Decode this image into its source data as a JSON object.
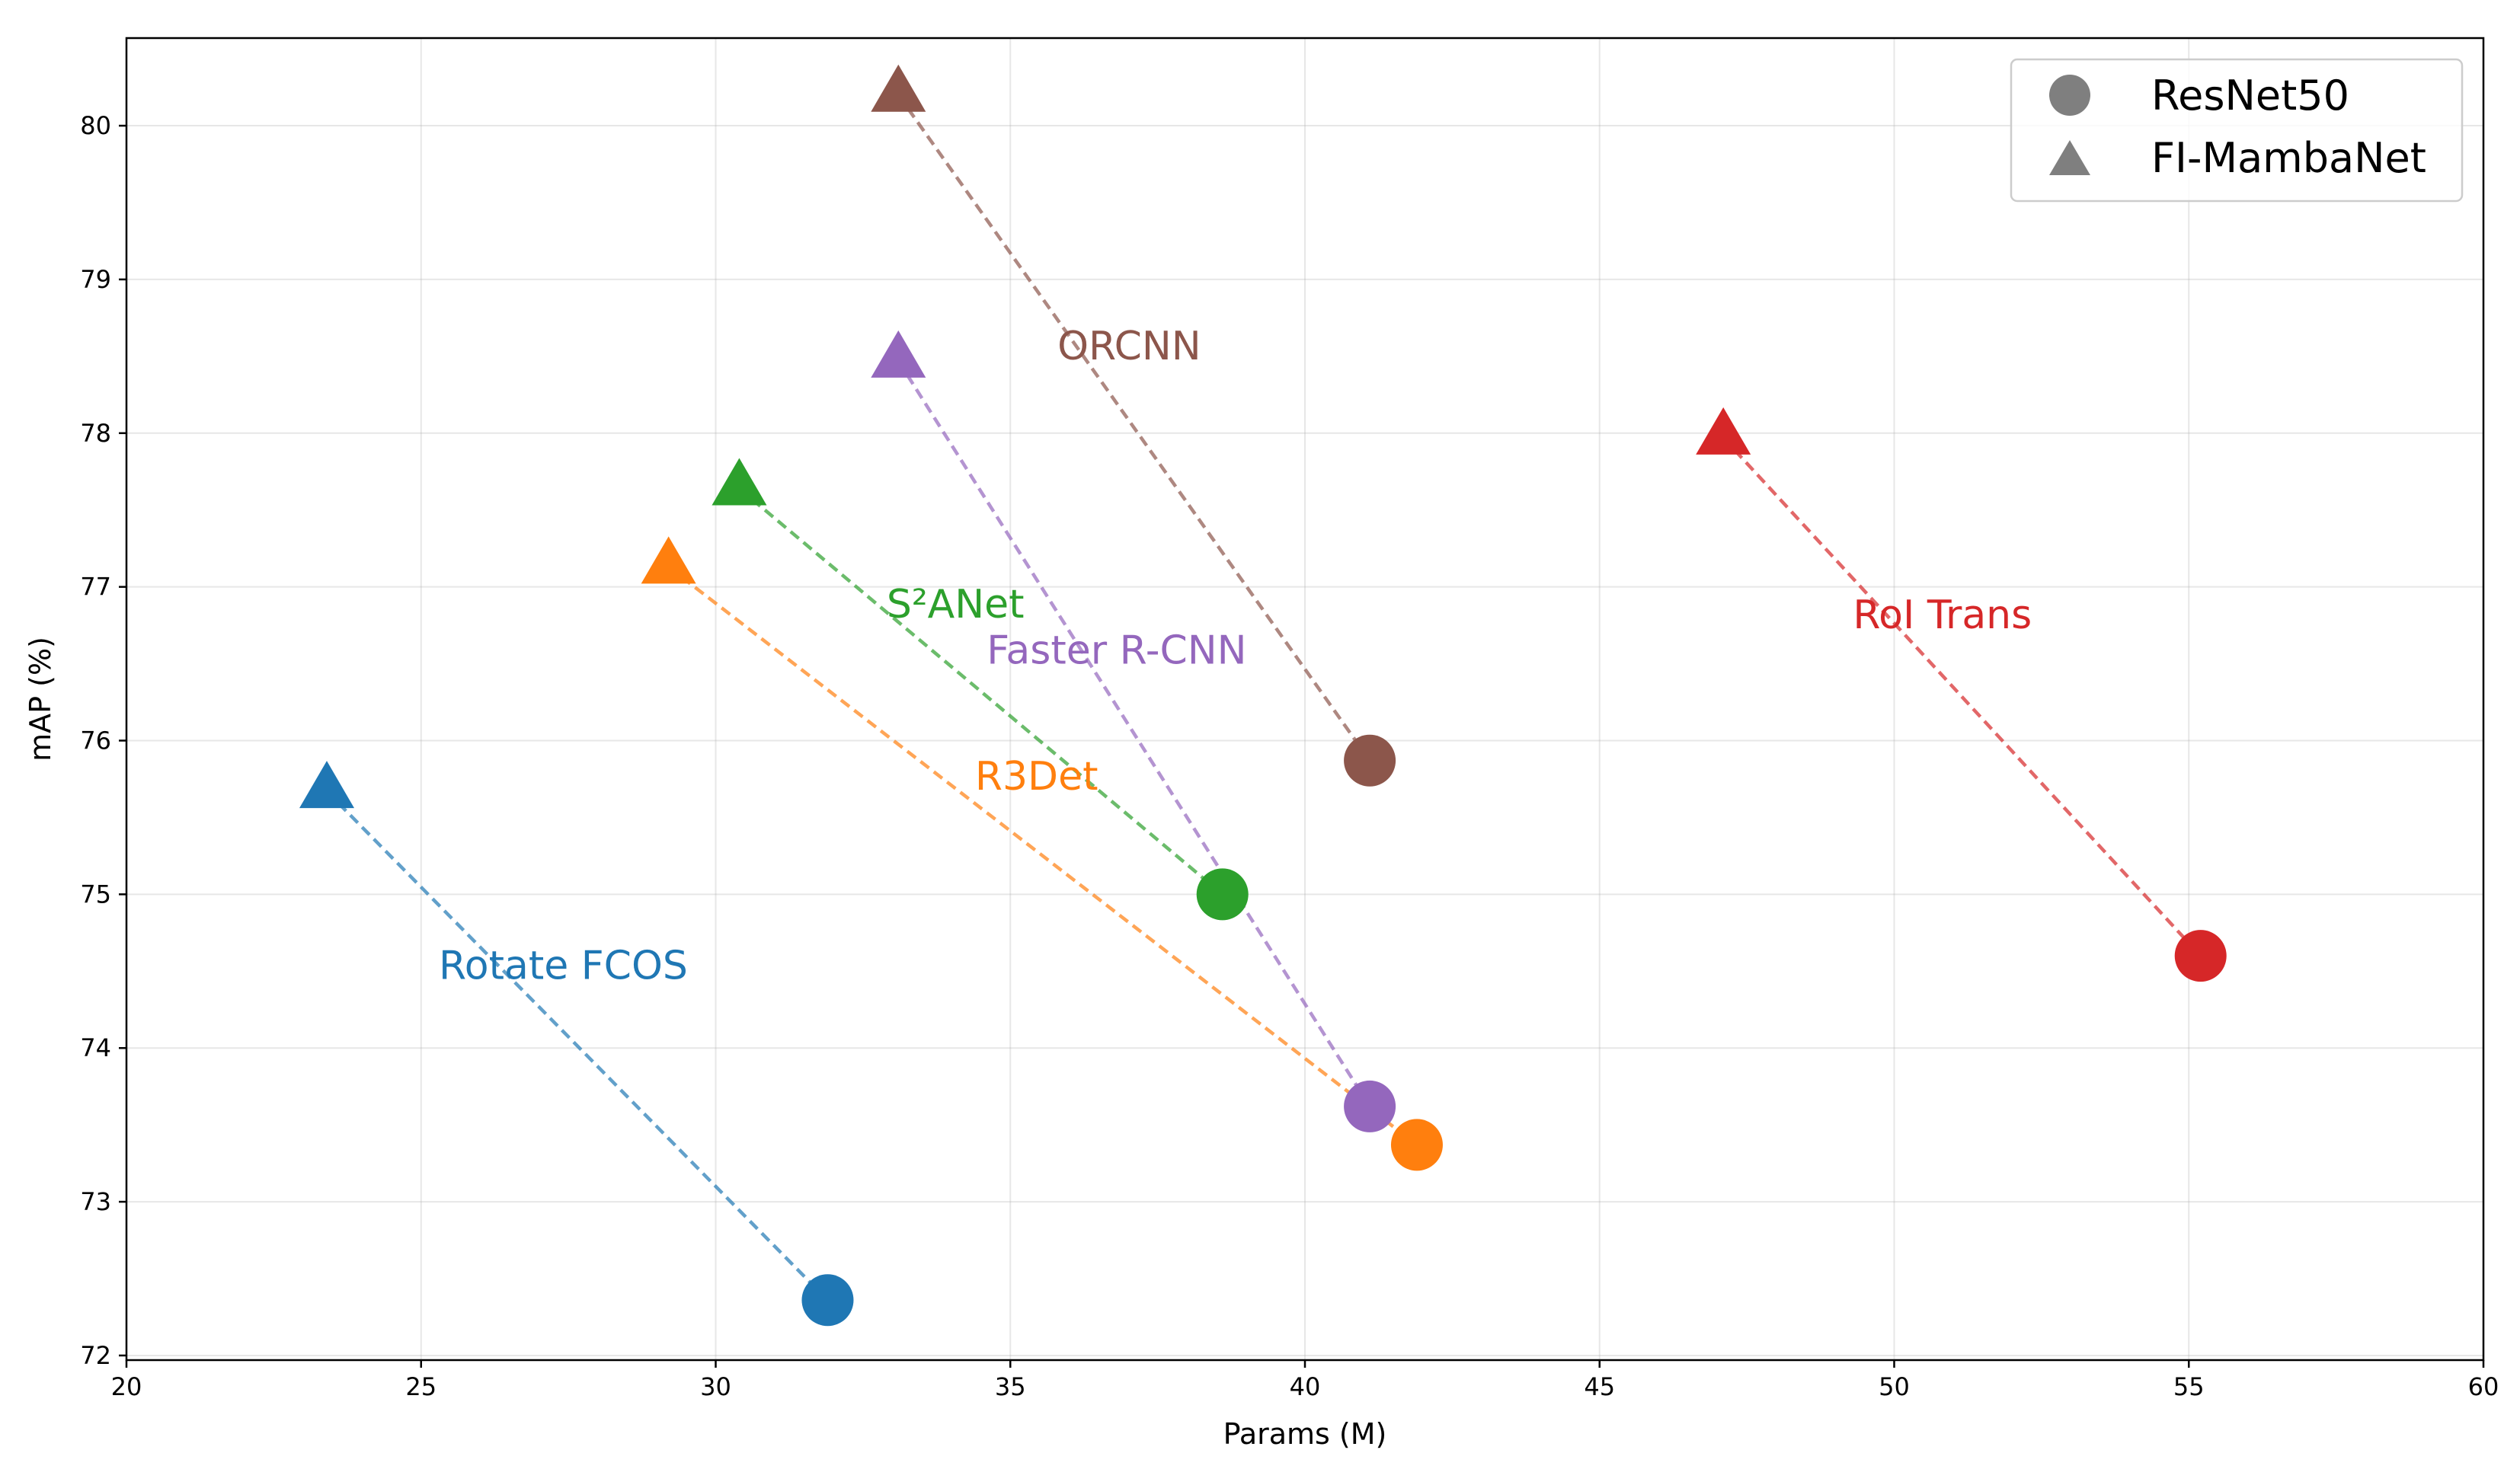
{
  "chart_data": {
    "type": "scatter",
    "title": "",
    "xlabel": "Params (M)",
    "ylabel": "mAP (%)",
    "xlim": [
      20,
      60
    ],
    "ylim": [
      71.97,
      80.57
    ],
    "xticks": [
      20,
      25,
      30,
      35,
      40,
      45,
      50,
      55,
      60
    ],
    "yticks": [
      72,
      73,
      74,
      75,
      76,
      77,
      78,
      79,
      80
    ],
    "grid": true,
    "legend": {
      "position": "top-right",
      "entries": [
        {
          "label": "ResNet50",
          "marker": "circle",
          "color": "#7f7f7f"
        },
        {
          "label": "FI-MambaNet",
          "marker": "triangle",
          "color": "#7f7f7f"
        }
      ]
    },
    "series": [
      {
        "name": "Rotate FCOS",
        "color": "#1f77b4",
        "resnet50": {
          "x": 31.9,
          "y": 72.36
        },
        "fi_mambanet": {
          "x": 23.4,
          "y": 75.67
        },
        "label_pos": {
          "x": 25.3,
          "y": 74.45
        }
      },
      {
        "name": "R3Det",
        "color": "#ff7f0e",
        "resnet50": {
          "x": 41.9,
          "y": 73.37
        },
        "fi_mambanet": {
          "x": 29.2,
          "y": 77.13
        },
        "label_pos": {
          "x": 34.4,
          "y": 75.68
        }
      },
      {
        "name": "S²ANet",
        "color": "#2ca02c",
        "resnet50": {
          "x": 38.6,
          "y": 75.0
        },
        "fi_mambanet": {
          "x": 30.4,
          "y": 77.64
        },
        "label_pos": {
          "x": 32.9,
          "y": 76.8
        }
      },
      {
        "name": "Faster R-CNN",
        "color": "#9467bd",
        "resnet50": {
          "x": 41.1,
          "y": 73.62
        },
        "fi_mambanet": {
          "x": 33.1,
          "y": 78.47
        },
        "label_pos": {
          "x": 34.6,
          "y": 76.5
        }
      },
      {
        "name": "ORCNN",
        "color": "#8c564b",
        "resnet50": {
          "x": 41.1,
          "y": 75.87
        },
        "fi_mambanet": {
          "x": 33.1,
          "y": 80.2
        },
        "label_pos": {
          "x": 35.8,
          "y": 78.48
        }
      },
      {
        "name": "RoI Trans",
        "color": "#d62728",
        "resnet50": {
          "x": 55.2,
          "y": 74.6
        },
        "fi_mambanet": {
          "x": 47.1,
          "y": 77.97
        },
        "label_pos": {
          "x": 49.3,
          "y": 76.73
        }
      }
    ]
  }
}
